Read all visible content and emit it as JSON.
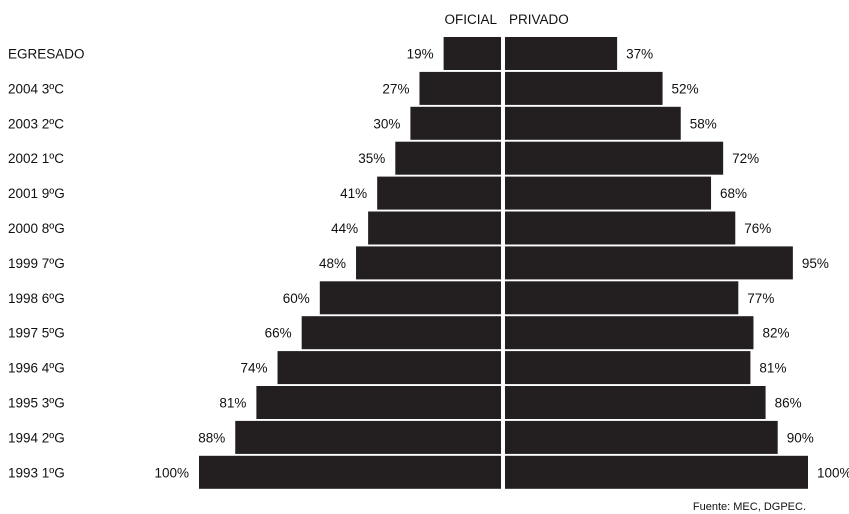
{
  "chart_data": {
    "type": "bar",
    "orientation": "horizontal-butterfly",
    "left_header": "OFICIAL",
    "right_header": "PRIVADO",
    "categories": [
      "EGRESADO",
      "2004 3ºC",
      "2003 2ºC",
      "2002 1ºC",
      "2001 9ºG",
      "2000 8ºG",
      "1999 7ºG",
      "1998 6ºG",
      "1997 5ºG",
      "1996 4ºG",
      "1995 3ºG",
      "1994 2ºG",
      "1993 1ºG"
    ],
    "series": [
      {
        "name": "OFICIAL",
        "side": "left",
        "values": [
          19,
          27,
          30,
          35,
          41,
          44,
          48,
          60,
          66,
          74,
          81,
          88,
          100
        ]
      },
      {
        "name": "PRIVADO",
        "side": "right",
        "values": [
          37,
          52,
          58,
          72,
          68,
          76,
          95,
          77,
          82,
          81,
          86,
          90,
          100
        ]
      }
    ],
    "value_suffix": "%",
    "xlim": [
      0,
      100
    ],
    "bar_color": "#231f20",
    "grid": false,
    "source": "Fuente: MEC, DGPEC."
  }
}
